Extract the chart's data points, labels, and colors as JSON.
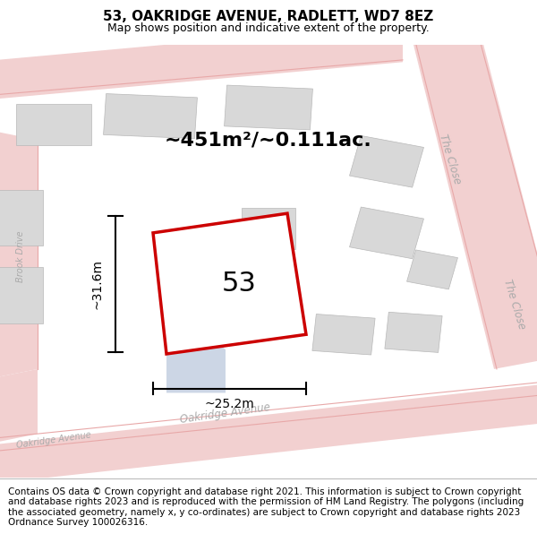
{
  "title": "53, OAKRIDGE AVENUE, RADLETT, WD7 8EZ",
  "subtitle": "Map shows position and indicative extent of the property.",
  "footer": "Contains OS data © Crown copyright and database right 2021. This information is subject to Crown copyright and database rights 2023 and is reproduced with the permission of HM Land Registry. The polygons (including the associated geometry, namely x, y co-ordinates) are subject to Crown copyright and database rights 2023 Ordnance Survey 100026316.",
  "bg_map_color": "#f0f0f0",
  "road_color": "#f2d0d0",
  "road_line_color": "#e8a8a8",
  "building_color": "#d8d8d8",
  "building_edge_color": "#b8b8b8",
  "plot_fill_color": "#ffffff",
  "plot_edge_color": "#cc0000",
  "road_label_color": "#aaaaaa",
  "area_text": "~451m²/~0.111ac.",
  "plot_label": "53",
  "dim_h": "~31.6m",
  "dim_w": "~25.2m",
  "title_fontsize": 11,
  "subtitle_fontsize": 9,
  "footer_fontsize": 7.5,
  "area_fontsize": 16,
  "plot_label_fontsize": 22,
  "dim_fontsize": 10,
  "road_label_fontsize_main": 8.5,
  "road_label_fontsize_small": 7.0
}
